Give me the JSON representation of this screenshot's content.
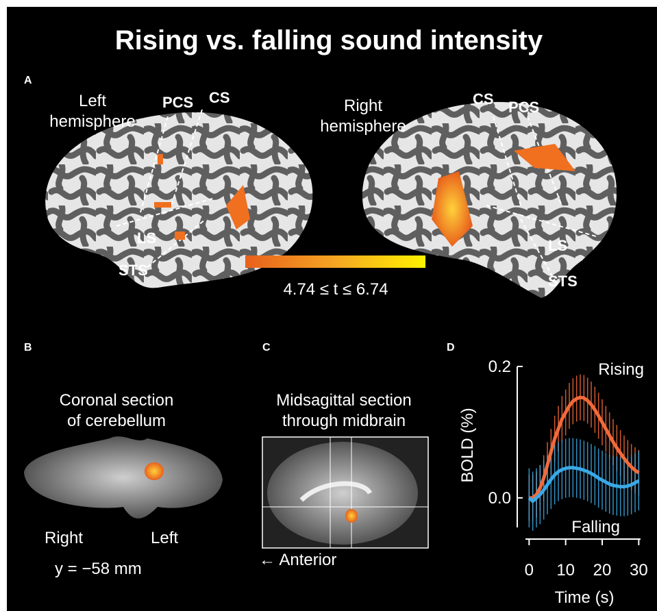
{
  "title": "Rising vs. falling sound intensity",
  "panels": {
    "a": {
      "label": "A",
      "left_hemisphere": [
        "Left",
        "hemisphere"
      ],
      "right_hemisphere": [
        "Right",
        "hemisphere"
      ],
      "left_sulci": [
        "PCS",
        "CS",
        "LS",
        "STS"
      ],
      "right_sulci": [
        "CS",
        "PCS",
        "LS",
        "STS"
      ],
      "colorbar_label": "4.74 ≤ t ≤ 6.74"
    },
    "b": {
      "label": "B",
      "caption": [
        "Coronal section",
        "of cerebellum"
      ],
      "right": "Right",
      "left": "Left",
      "coordinate": "y = −58 mm"
    },
    "c": {
      "label": "C",
      "caption": [
        "Midsagittal section",
        "through midbrain"
      ],
      "direction": "← Anterior"
    },
    "d": {
      "label": "D"
    }
  },
  "chart_data": {
    "type": "line",
    "y_label": "BOLD (%)",
    "x_label": "Time (s)",
    "x": [
      0,
      1,
      2,
      3,
      4,
      5,
      6,
      7,
      8,
      9,
      10,
      11,
      12,
      13,
      14,
      15,
      16,
      17,
      18,
      19,
      20,
      21,
      22,
      23,
      24,
      25,
      26,
      27,
      28,
      29,
      30
    ],
    "xlim": [
      -1,
      30.5
    ],
    "xticks": [
      0,
      10,
      20,
      30
    ],
    "ylim": [
      -0.045,
      0.2
    ],
    "yticks": [
      {
        "value": 0,
        "label": "0.0"
      },
      0.2
    ],
    "series": [
      {
        "name": "Rising",
        "color": "#f26a3a",
        "values": [
          0.0,
          0.0,
          0.005,
          0.015,
          0.03,
          0.05,
          0.07,
          0.09,
          0.105,
          0.12,
          0.13,
          0.14,
          0.147,
          0.151,
          0.153,
          0.152,
          0.148,
          0.142,
          0.134,
          0.125,
          0.115,
          0.105,
          0.095,
          0.085,
          0.076,
          0.068,
          0.06,
          0.053,
          0.047,
          0.042,
          0.038
        ],
        "errors": [
          0.035,
          0.035,
          0.035,
          0.035,
          0.035,
          0.035,
          0.035,
          0.035,
          0.035,
          0.035,
          0.035,
          0.035,
          0.035,
          0.035,
          0.035,
          0.035,
          0.035,
          0.035,
          0.035,
          0.035,
          0.035,
          0.035,
          0.035,
          0.035,
          0.035,
          0.035,
          0.035,
          0.035,
          0.035,
          0.035,
          0.035
        ]
      },
      {
        "name": "Falling",
        "color": "#3aa8e6",
        "values": [
          0.0,
          -0.005,
          0.0,
          0.005,
          0.012,
          0.02,
          0.028,
          0.035,
          0.04,
          0.043,
          0.045,
          0.046,
          0.046,
          0.045,
          0.044,
          0.042,
          0.04,
          0.037,
          0.034,
          0.03,
          0.027,
          0.024,
          0.021,
          0.019,
          0.018,
          0.017,
          0.017,
          0.018,
          0.02,
          0.023,
          0.026
        ],
        "errors": [
          0.045,
          0.045,
          0.045,
          0.045,
          0.045,
          0.045,
          0.045,
          0.045,
          0.045,
          0.045,
          0.045,
          0.045,
          0.045,
          0.045,
          0.045,
          0.045,
          0.045,
          0.045,
          0.045,
          0.045,
          0.045,
          0.045,
          0.045,
          0.045,
          0.045,
          0.045,
          0.045,
          0.045,
          0.045,
          0.045,
          0.045
        ]
      }
    ]
  }
}
